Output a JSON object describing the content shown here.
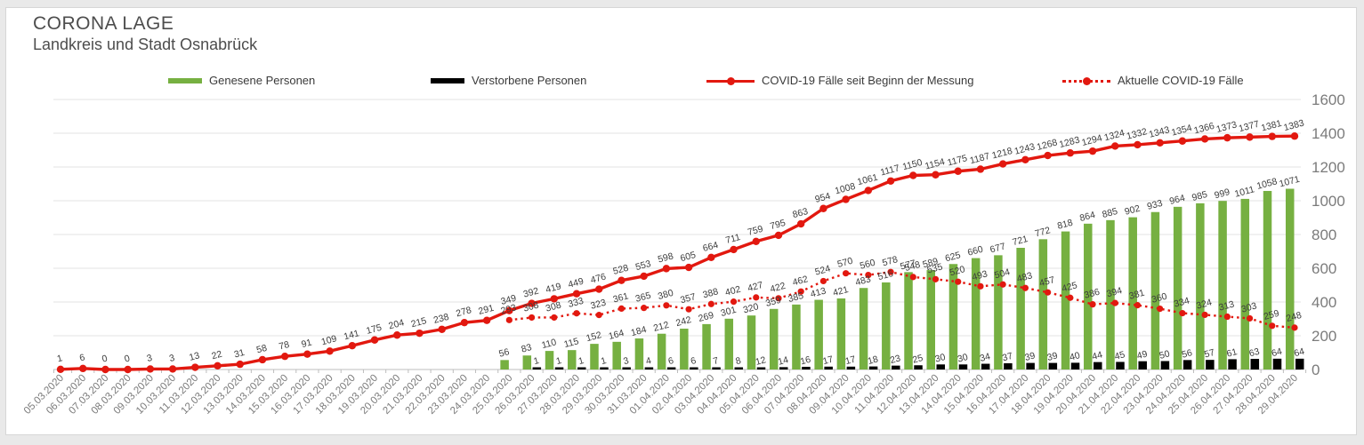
{
  "page": {
    "title": "CORONA LAGE",
    "subtitle": "Landkreis und Stadt Osnabrück"
  },
  "colors": {
    "recovered": "#76b041",
    "deceased": "#000000",
    "line_red": "#e2180f",
    "grid": "#e3e3e3",
    "axis_text": "#7b7b7b",
    "data_label": "#3d3d3d"
  },
  "legend": {
    "items": [
      {
        "label": "Genesene Personen",
        "type": "bar",
        "color": "#76b041"
      },
      {
        "label": "Verstorbene Personen",
        "type": "bar",
        "color": "#000000"
      },
      {
        "label": "COVID-19 Fälle seit Beginn der Messung",
        "type": "line",
        "color": "#e2180f"
      },
      {
        "label": "Aktuelle COVID-19 Fälle",
        "type": "dotted-line",
        "color": "#e2180f"
      }
    ]
  },
  "chart_data": {
    "type": "bar+line combo",
    "title": "CORONA LAGE",
    "subtitle": "Landkreis und Stadt Osnabrück",
    "xlabel": "",
    "ylabel": "",
    "ylim": [
      0,
      1600
    ],
    "yticks": [
      0,
      200,
      400,
      600,
      800,
      1000,
      1200,
      1400,
      1600
    ],
    "grid": true,
    "legend_position": "top",
    "categories": [
      "05.03.2020",
      "06.03.2020",
      "07.03.2020",
      "08.03.2020",
      "09.03.2020",
      "10.03.2020",
      "11.03.2020",
      "12.03.2020",
      "13.03.2020",
      "14.03.2020",
      "15.03.2020",
      "16.03.2020",
      "17.03.2020",
      "18.03.2020",
      "19.03.2020",
      "20.03.2020",
      "21.03.2020",
      "22.03.2020",
      "23.03.2020",
      "24.03.2020",
      "25.03.2020",
      "26.03.2020",
      "27.03.2020",
      "28.03.2020",
      "29.03.2020",
      "30.03.2020",
      "31.03.2020",
      "01.04.2020",
      "02.04.2020",
      "03.04.2020",
      "04.04.2020",
      "05.04.2020",
      "06.04.2020",
      "07.04.2020",
      "08.04.2020",
      "09.04.2020",
      "10.04.2020",
      "11.04.2020",
      "12.04.2020",
      "13.04.2020",
      "14.04.2020",
      "15.04.2020",
      "16.04.2020",
      "17.04.2020",
      "18.04.2020",
      "19.04.2020",
      "20.04.2020",
      "21.04.2020",
      "22.04.2020",
      "23.04.2020",
      "24.04.2020",
      "25.04.2020",
      "26.04.2020",
      "27.04.2020",
      "28.04.2020",
      "29.04.2020"
    ],
    "series": [
      {
        "name": "Genesene Personen",
        "kind": "bar",
        "color": "#76b041",
        "values": [
          null,
          null,
          null,
          null,
          null,
          null,
          null,
          null,
          null,
          null,
          null,
          null,
          null,
          null,
          null,
          null,
          null,
          null,
          null,
          null,
          56,
          83,
          110,
          115,
          152,
          164,
          184,
          212,
          242,
          269,
          301,
          320,
          359,
          385,
          413,
          421,
          483,
          516,
          577,
          589,
          625,
          660,
          677,
          721,
          772,
          818,
          864,
          885,
          902,
          933,
          964,
          985,
          999,
          1011,
          1058,
          1071
        ]
      },
      {
        "name": "Verstorbene Personen",
        "kind": "bar",
        "color": "#000000",
        "values": [
          null,
          null,
          null,
          null,
          null,
          null,
          null,
          null,
          null,
          null,
          null,
          null,
          null,
          null,
          null,
          null,
          null,
          null,
          null,
          null,
          null,
          1,
          1,
          1,
          1,
          3,
          4,
          6,
          6,
          7,
          8,
          12,
          14,
          16,
          17,
          17,
          18,
          23,
          25,
          30,
          30,
          34,
          37,
          39,
          39,
          40,
          44,
          45,
          49,
          50,
          56,
          57,
          61,
          63,
          64,
          64
        ]
      },
      {
        "name": "COVID-19 Fälle seit Beginn der Messung",
        "kind": "line",
        "color": "#e2180f",
        "values": [
          1,
          6,
          0,
          0,
          3,
          3,
          13,
          22,
          31,
          58,
          78,
          91,
          109,
          141,
          175,
          204,
          215,
          238,
          278,
          291,
          349,
          392,
          419,
          449,
          476,
          528,
          553,
          598,
          605,
          664,
          711,
          759,
          795,
          863,
          954,
          1008,
          1061,
          1117,
          1150,
          1154,
          1175,
          1187,
          1218,
          1243,
          1268,
          1283,
          1294,
          1324,
          1332,
          1343,
          1354,
          1366,
          1373,
          1377,
          1381,
          1383
        ]
      },
      {
        "name": "Aktuelle COVID-19 Fälle",
        "kind": "dotted-line",
        "color": "#e2180f",
        "values": [
          null,
          null,
          null,
          null,
          null,
          null,
          null,
          null,
          null,
          null,
          null,
          null,
          null,
          null,
          null,
          null,
          null,
          null,
          null,
          null,
          293,
          308,
          308,
          333,
          323,
          361,
          365,
          380,
          357,
          388,
          402,
          427,
          422,
          462,
          524,
          570,
          560,
          578,
          548,
          535,
          520,
          493,
          504,
          483,
          457,
          425,
          386,
          394,
          381,
          360,
          334,
          324,
          313,
          303,
          259,
          248
        ]
      }
    ]
  }
}
